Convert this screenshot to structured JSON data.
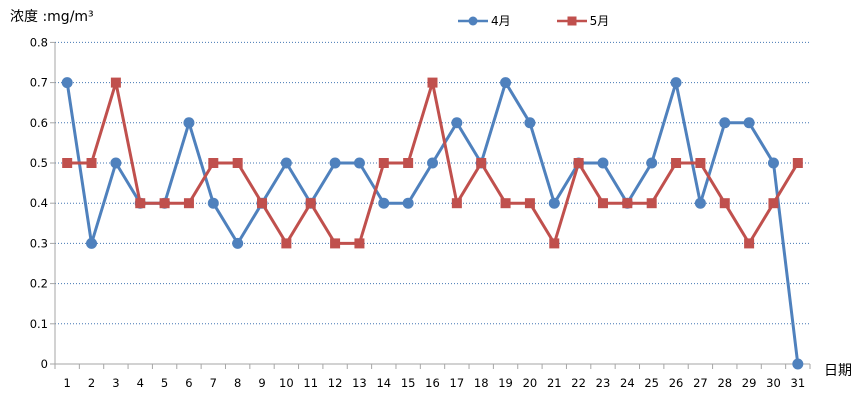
{
  "title": "浓度 :mg/m³",
  "chart_data": {
    "type": "line",
    "title": "浓度 :mg/m³",
    "xlabel": "日期",
    "ylabel": "浓度 :mg/m³",
    "ylim": [
      0,
      0.8
    ],
    "ytick_step": 0.1,
    "grid": "horizontal-dotted",
    "legend_position": "top-center",
    "colors": {
      "grid": "#4477B3",
      "axis": "#A6A6A6",
      "text": "#000000"
    },
    "yticks": [
      "0",
      "0.1",
      "0.2",
      "0.3",
      "0.4",
      "0.5",
      "0.6",
      "0.7",
      "0.8"
    ],
    "categories": [
      "1",
      "2",
      "3",
      "4",
      "5",
      "6",
      "7",
      "8",
      "9",
      "10",
      "11",
      "12",
      "13",
      "14",
      "15",
      "16",
      "17",
      "18",
      "19",
      "20",
      "21",
      "22",
      "23",
      "24",
      "25",
      "26",
      "27",
      "28",
      "29",
      "30",
      "31"
    ],
    "series": [
      {
        "name": "4月",
        "color": "#4F81BD",
        "marker": "circle",
        "values": [
          0.7,
          0.3,
          0.5,
          0.4,
          0.4,
          0.6,
          0.4,
          0.3,
          0.4,
          0.5,
          0.4,
          0.5,
          0.5,
          0.4,
          0.4,
          0.5,
          0.6,
          0.5,
          0.7,
          0.6,
          0.4,
          0.5,
          0.5,
          0.4,
          0.5,
          0.7,
          0.4,
          0.6,
          0.6,
          0.5,
          0.0
        ]
      },
      {
        "name": "5月",
        "color": "#C0504D",
        "marker": "square",
        "values": [
          0.5,
          0.5,
          0.7,
          0.4,
          0.4,
          0.4,
          0.5,
          0.5,
          0.4,
          0.3,
          0.4,
          0.3,
          0.3,
          0.5,
          0.5,
          0.7,
          0.4,
          0.5,
          0.4,
          0.4,
          0.3,
          0.5,
          0.4,
          0.4,
          0.4,
          0.5,
          0.5,
          0.4,
          0.3,
          0.4,
          0.5
        ]
      }
    ]
  }
}
